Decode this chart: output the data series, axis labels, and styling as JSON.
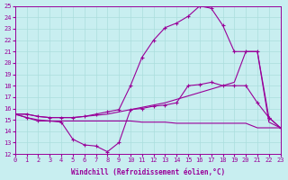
{
  "xlabel": "Windchill (Refroidissement éolien,°C)",
  "xlim": [
    0,
    23
  ],
  "ylim": [
    12,
    25
  ],
  "xtick_labels": [
    "0",
    "1",
    "2",
    "3",
    "4",
    "5",
    "6",
    "7",
    "8",
    "9",
    "10",
    "11",
    "12",
    "13",
    "14",
    "15",
    "16",
    "17",
    "18",
    "19",
    "20",
    "21",
    "22",
    "23"
  ],
  "ytick_labels": [
    "12",
    "13",
    "14",
    "15",
    "16",
    "17",
    "18",
    "19",
    "20",
    "21",
    "22",
    "23",
    "24",
    "25"
  ],
  "bg_color": "#c8eef0",
  "line_color": "#990099",
  "grid_color": "#aadddd",
  "lines": [
    {
      "x": [
        0,
        1,
        2,
        3,
        4,
        5,
        6,
        7,
        8,
        9,
        10,
        11,
        12,
        13,
        14,
        15,
        16,
        17,
        18,
        19,
        20,
        21,
        22,
        23
      ],
      "y": [
        15.5,
        15.2,
        14.9,
        14.9,
        14.8,
        13.3,
        12.8,
        12.7,
        12.2,
        13.0,
        15.9,
        16.0,
        16.2,
        16.3,
        16.5,
        18.0,
        18.1,
        18.3,
        18.0,
        18.0,
        18.0,
        16.5,
        15.2,
        14.3
      ],
      "marker": "+"
    },
    {
      "x": [
        0,
        1,
        2,
        3,
        4,
        5,
        6,
        7,
        8,
        9,
        10,
        11,
        12,
        13,
        14,
        15,
        16,
        17,
        18,
        19,
        20,
        21,
        22,
        23
      ],
      "y": [
        15.5,
        15.5,
        15.3,
        15.2,
        15.2,
        15.2,
        15.3,
        15.4,
        15.5,
        15.7,
        15.9,
        16.1,
        16.3,
        16.5,
        16.8,
        17.1,
        17.4,
        17.7,
        18.0,
        18.3,
        21.0,
        21.0,
        14.8,
        14.3
      ],
      "marker": null
    },
    {
      "x": [
        0,
        1,
        2,
        3,
        4,
        5,
        6,
        7,
        8,
        9,
        10,
        11,
        12,
        13,
        14,
        15,
        16,
        17,
        18,
        19,
        20,
        21,
        22,
        23
      ],
      "y": [
        15.5,
        15.5,
        15.3,
        15.2,
        15.2,
        15.2,
        15.3,
        15.5,
        15.7,
        15.9,
        18.0,
        20.5,
        22.0,
        23.1,
        23.5,
        24.1,
        25.0,
        24.8,
        23.3,
        21.0,
        21.0,
        21.0,
        15.2,
        14.3
      ],
      "marker": "+"
    },
    {
      "x": [
        0,
        1,
        2,
        3,
        4,
        5,
        6,
        7,
        8,
        9,
        10,
        11,
        12,
        13,
        14,
        15,
        16,
        17,
        18,
        19,
        20,
        21,
        22,
        23
      ],
      "y": [
        15.5,
        15.2,
        15.0,
        14.9,
        14.9,
        14.9,
        14.9,
        14.9,
        14.9,
        14.9,
        14.9,
        14.8,
        14.8,
        14.8,
        14.7,
        14.7,
        14.7,
        14.7,
        14.7,
        14.7,
        14.7,
        14.3,
        14.3,
        14.3
      ],
      "marker": null
    }
  ]
}
